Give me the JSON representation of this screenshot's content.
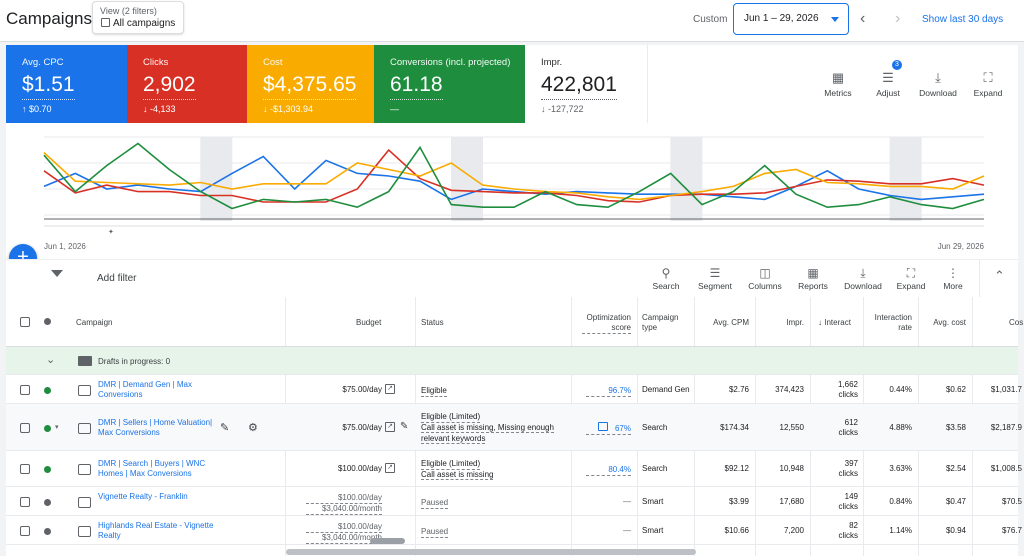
{
  "header": {
    "title": "Campaigns",
    "view_label": "View (2 filters)",
    "view_value": "All campaigns",
    "custom_label": "Custom",
    "date_range": "Jun 1 – 29, 2026",
    "show_last": "Show last 30 days"
  },
  "scorecards": [
    {
      "label": "Avg. CPC",
      "value": "$1.51",
      "delta": "↑ $0.70",
      "color": "#1a73e8"
    },
    {
      "label": "Clicks",
      "value": "2,902",
      "delta": "↓ -4,133",
      "color": "#d93025"
    },
    {
      "label": "Cost",
      "value": "$4,375.65",
      "delta": "↓ -$1,303.94",
      "color": "#f9ab00"
    },
    {
      "label": "Conversions (incl. projected)",
      "value": "61.18",
      "delta": "—",
      "color": "#1e8e3e"
    },
    {
      "label": "Impr.",
      "value": "422,801",
      "delta": "↓ -127,722",
      "color": "#ffffff"
    }
  ],
  "scorecard_tools": {
    "metrics": "Metrics",
    "adjust": "Adjust",
    "adjust_badge": "3",
    "download": "Download",
    "expand": "Expand"
  },
  "chart_data": {
    "type": "line",
    "x_start_label": "Jun 1, 2026",
    "x_end_label": "Jun 29, 2026",
    "series": [
      {
        "color": "#1a73e8",
        "values": [
          62,
          72,
          60,
          63,
          60,
          58,
          72,
          85,
          60,
          82,
          72,
          70,
          66,
          52,
          60,
          58,
          56,
          58,
          57,
          56,
          56,
          56,
          54,
          52,
          62,
          74,
          60,
          55,
          52,
          54,
          56
        ]
      },
      {
        "color": "#d93025",
        "values": [
          74,
          57,
          63,
          58,
          58,
          55,
          55,
          50,
          50,
          50,
          60,
          90,
          68,
          59,
          58,
          57,
          57,
          55,
          51,
          50,
          55,
          56,
          56,
          57,
          62,
          67,
          66,
          64,
          64,
          68,
          63
        ]
      },
      {
        "color": "#f9ab00",
        "values": [
          88,
          66,
          65,
          64,
          63,
          65,
          60,
          64,
          64,
          64,
          80,
          75,
          70,
          80,
          63,
          60,
          58,
          57,
          54,
          52,
          55,
          58,
          62,
          72,
          75,
          65,
          64,
          62,
          62,
          60,
          70
        ]
      },
      {
        "color": "#1e8e3e",
        "values": [
          86,
          58,
          78,
          95,
          75,
          58,
          45,
          52,
          50,
          52,
          46,
          58,
          92,
          48,
          46,
          46,
          58,
          48,
          46,
          58,
          72,
          48,
          58,
          78,
          56,
          46,
          48,
          54,
          48,
          45,
          52
        ]
      }
    ],
    "shaded_columns": [
      5,
      13,
      20,
      27
    ],
    "grid": true
  },
  "filterbar": {
    "add_filter": "Add filter",
    "tools": [
      "Search",
      "Segment",
      "Columns",
      "Reports",
      "Download",
      "Expand",
      "More"
    ]
  },
  "table": {
    "columns": [
      "Campaign",
      "Budget",
      "Status",
      "Optimization score",
      "Campaign type",
      "Avg. CPM",
      "Impr.",
      "Interact",
      "Interaction rate",
      "Avg. cost",
      "Cos"
    ],
    "drafts": "Drafts in progress: 0",
    "rows": [
      {
        "name": "DMR | Demand Gen | Max Conversions",
        "budget": "$75.00/day",
        "status": "Eligible",
        "status2": "",
        "opt": "96.7%",
        "type": "Demand Gen",
        "cpm": "$2.76",
        "impr": "374,423",
        "inter": "1,662",
        "inter_unit": "clicks",
        "rate": "0.44%",
        "avg": "$0.62",
        "cost": "$1,031.7",
        "dot": "#1e8e3e"
      },
      {
        "name": "DMR | Sellers | Home Valuation| Max Conversions",
        "budget": "$75.00/day",
        "status": "Eligible (Limited)",
        "status2": "Call asset is missing, Missing enough relevant keywords",
        "opt": "67%",
        "type": "Search",
        "cpm": "$174.34",
        "impr": "12,550",
        "inter": "612",
        "inter_unit": "clicks",
        "rate": "4.88%",
        "avg": "$3.58",
        "cost": "$2,187.9",
        "dot": "#1e8e3e"
      },
      {
        "name": "DMR | Search | Buyers | WNC Homes | Max Conversions",
        "budget": "$100.00/day",
        "status": "Eligible (Limited)",
        "status2": "Call asset is missing",
        "opt": "80.4%",
        "type": "Search",
        "cpm": "$92.12",
        "impr": "10,948",
        "inter": "397",
        "inter_unit": "clicks",
        "rate": "3.63%",
        "avg": "$2.54",
        "cost": "$1,008.5",
        "dot": "#1e8e3e"
      },
      {
        "name": "Vignette Realty - Franklin",
        "budget": "$100.00/day",
        "budget2": "$3,040.00/month",
        "status": "Paused",
        "status2": "",
        "opt": "—",
        "type": "Smart",
        "cpm": "$3.99",
        "impr": "17,680",
        "inter": "149",
        "inter_unit": "clicks",
        "rate": "0.84%",
        "avg": "$0.47",
        "cost": "$70.5",
        "dot": "#5f6368"
      },
      {
        "name": "Highlands Real Estate - Vignette Realty",
        "budget": "$100.00/day",
        "budget2": "$3,040.00/month",
        "status": "Paused",
        "status2": "",
        "opt": "—",
        "type": "Smart",
        "cpm": "$10.66",
        "impr": "7,200",
        "inter": "82",
        "inter_unit": "clicks",
        "rate": "1.14%",
        "avg": "$0.94",
        "cost": "$76.7",
        "dot": "#5f6368"
      }
    ]
  }
}
